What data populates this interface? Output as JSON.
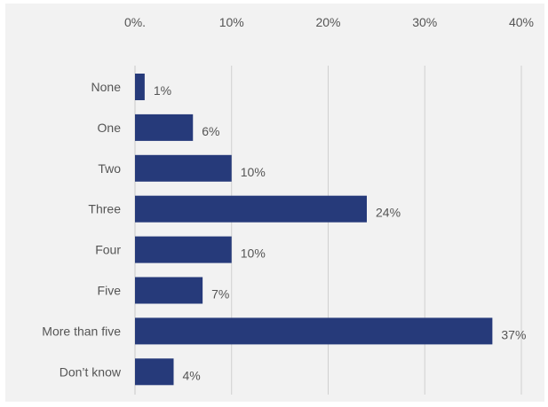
{
  "chart_data": {
    "type": "bar",
    "orientation": "horizontal",
    "categories": [
      "None",
      "One",
      "Two",
      "Three",
      "Four",
      "Five",
      "More than five",
      "Don’t know"
    ],
    "values": [
      1,
      6,
      10,
      24,
      10,
      7,
      37,
      4
    ],
    "value_labels": [
      "1%",
      "6%",
      "10%",
      "24%",
      "10%",
      "7%",
      "37%",
      "4%"
    ],
    "xticks": [
      {
        "value": 0,
        "label": "0%."
      },
      {
        "value": 10,
        "label": "10%"
      },
      {
        "value": 20,
        "label": "20%"
      },
      {
        "value": 30,
        "label": "30%"
      },
      {
        "value": 40,
        "label": "40%"
      }
    ],
    "xlim": [
      0,
      40
    ],
    "x_axis_position": "top",
    "grid": true,
    "bar_color": "#263a7a",
    "background_color": "#f2f2f2",
    "title": "",
    "xlabel": "",
    "ylabel": ""
  }
}
